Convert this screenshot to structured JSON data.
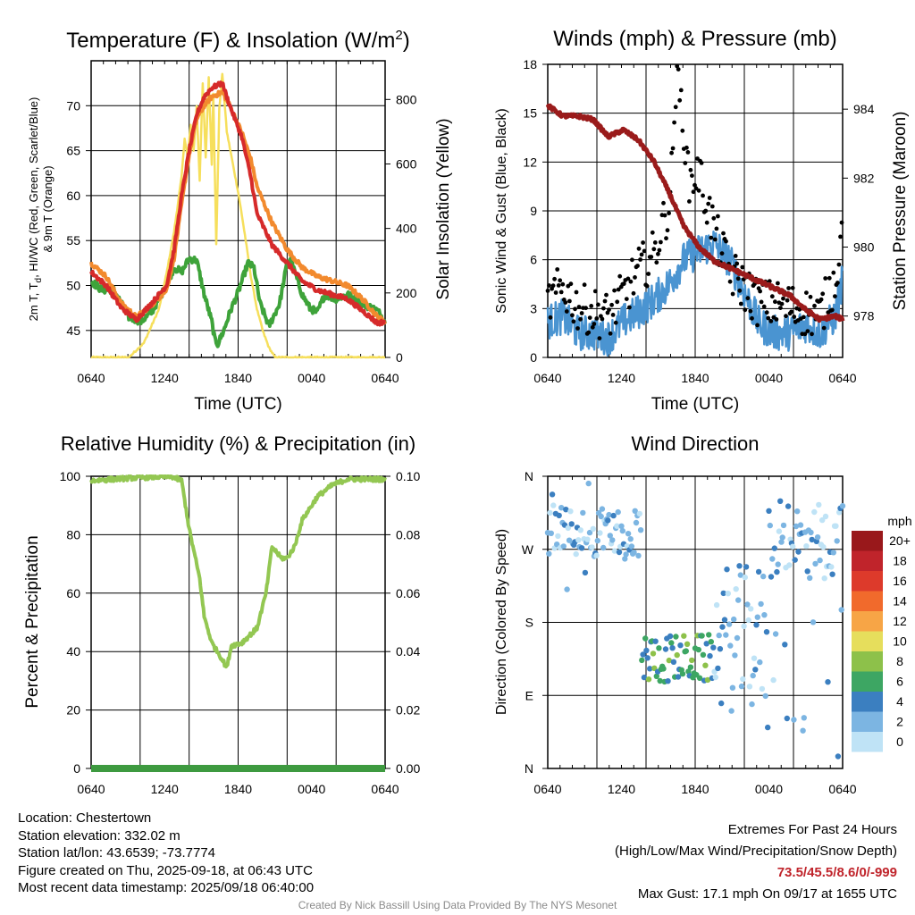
{
  "colors": {
    "temp_2m": "#d62a2a",
    "temp_9m": "#f28a2e",
    "dewpoint": "#3ea33a",
    "solar": "#f6df5c",
    "wind": "#4a94d1",
    "gust": "#000000",
    "pressure": "#9a1b1b",
    "rh": "#93c752",
    "precip": "#3e9a40"
  },
  "speed_legend": {
    "title": "mph",
    "levels": [
      {
        "label": "20+",
        "color": "#99181b"
      },
      {
        "label": "18",
        "color": "#c0242b"
      },
      {
        "label": "16",
        "color": "#dd3a2b"
      },
      {
        "label": "14",
        "color": "#f16a2c"
      },
      {
        "label": "12",
        "color": "#f7a546"
      },
      {
        "label": "10",
        "color": "#e6de5c"
      },
      {
        "label": "8",
        "color": "#8dc14a"
      },
      {
        "label": "6",
        "color": "#3da663"
      },
      {
        "label": "4",
        "color": "#3b7fc0"
      },
      {
        "label": "2",
        "color": "#7cb5e2"
      },
      {
        "label": "0",
        "color": "#bfe3f6"
      }
    ]
  },
  "chart_data": [
    {
      "type": "line",
      "title": "Temperature (F) & Insolation (W/m",
      "title_sup": "2",
      "title_close": ")",
      "xlabel": "Time (UTC)",
      "ylabel_left_line1": "2m T, T",
      "ylabel_left_sub": "d",
      "ylabel_left_rest": ", HI/WC (Red, Green, Scarlet/Blue)",
      "ylabel_left_line2": "& 9m T (Orange)",
      "ylabel_right": "Solar Insolation (Yellow)",
      "x_tick_labels": [
        "0640",
        "1240",
        "1840",
        "0040",
        "0640"
      ],
      "ylim": [
        42,
        75
      ],
      "y_ticks": [
        "45",
        "50",
        "55",
        "60",
        "65",
        "70"
      ],
      "y2lim": [
        0,
        920
      ],
      "y2_ticks": [
        "0",
        "200",
        "400",
        "600",
        "800"
      ],
      "series": [
        {
          "name": "2m T",
          "color_key": "temp_2m",
          "axis": "left",
          "points": [
            [
              0,
              51.5
            ],
            [
              1,
              50
            ],
            [
              2,
              47.5
            ],
            [
              3,
              46.2
            ],
            [
              4,
              48
            ],
            [
              5,
              50
            ],
            [
              5.5,
              54
            ],
            [
              6,
              60
            ],
            [
              6.5,
              65
            ],
            [
              7,
              69
            ],
            [
              7.5,
              71
            ],
            [
              8,
              72
            ],
            [
              8.7,
              72.5
            ],
            [
              9.2,
              70
            ],
            [
              10,
              66.5
            ],
            [
              10.6,
              62
            ],
            [
              11,
              58
            ],
            [
              12,
              54.5
            ],
            [
              13,
              52.5
            ],
            [
              14,
              50.5
            ],
            [
              15,
              49.5
            ],
            [
              16,
              49
            ],
            [
              17,
              48.5
            ],
            [
              18,
              47.2
            ],
            [
              19,
              45.8
            ],
            [
              19.5,
              46
            ]
          ]
        },
        {
          "name": "9m T",
          "color_key": "temp_9m",
          "axis": "left",
          "points": [
            [
              0,
              52.5
            ],
            [
              1,
              51
            ],
            [
              2,
              48
            ],
            [
              3,
              46.5
            ],
            [
              4,
              47.8
            ],
            [
              5,
              49.5
            ],
            [
              5.5,
              53
            ],
            [
              6,
              59
            ],
            [
              6.5,
              64.5
            ],
            [
              7,
              68.5
            ],
            [
              7.5,
              70
            ],
            [
              8,
              71
            ],
            [
              8.7,
              71.5
            ],
            [
              9.2,
              70
            ],
            [
              10,
              67
            ],
            [
              10.6,
              64
            ],
            [
              11,
              61
            ],
            [
              12,
              57
            ],
            [
              13,
              54
            ],
            [
              14,
              52
            ],
            [
              15,
              51
            ],
            [
              16,
              50.5
            ],
            [
              17,
              50
            ],
            [
              18,
              48.5
            ],
            [
              19,
              46.5
            ],
            [
              19.5,
              46
            ]
          ]
        },
        {
          "name": "Td",
          "color_key": "dewpoint",
          "axis": "left",
          "points": [
            [
              0,
              50.5
            ],
            [
              0.7,
              49.5
            ],
            [
              1.5,
              49.5
            ],
            [
              2.5,
              46.5
            ],
            [
              3.3,
              46
            ],
            [
              4,
              47
            ],
            [
              4.5,
              48.5
            ],
            [
              5,
              50
            ],
            [
              5.5,
              52
            ],
            [
              6,
              51.5
            ],
            [
              6.5,
              53
            ],
            [
              7,
              52.8
            ],
            [
              7.5,
              49
            ],
            [
              8,
              46
            ],
            [
              8.2,
              44
            ],
            [
              8.4,
              43.5
            ],
            [
              8.8,
              45
            ],
            [
              9.2,
              47
            ],
            [
              9.8,
              49.5
            ],
            [
              10.4,
              52.5
            ],
            [
              10.8,
              52
            ],
            [
              11.2,
              48
            ],
            [
              11.8,
              45.5
            ],
            [
              12.5,
              48
            ],
            [
              13,
              52.5
            ],
            [
              13.2,
              53
            ],
            [
              13.6,
              51
            ],
            [
              14,
              49
            ],
            [
              14.5,
              47.5
            ],
            [
              15,
              47
            ],
            [
              15.5,
              49
            ],
            [
              16.2,
              48.5
            ],
            [
              17,
              49
            ],
            [
              17.5,
              48.5
            ],
            [
              18,
              48
            ],
            [
              19,
              47.2
            ],
            [
              19.5,
              46
            ]
          ]
        },
        {
          "name": "Solar",
          "color_key": "solar",
          "axis": "right",
          "points": [
            [
              0,
              0
            ],
            [
              2.5,
              0
            ],
            [
              3.5,
              45
            ],
            [
              4.5,
              150
            ],
            [
              5,
              260
            ],
            [
              5.5,
              390
            ],
            [
              6,
              560
            ],
            [
              6.2,
              680
            ],
            [
              6.4,
              620
            ],
            [
              6.6,
              720
            ],
            [
              6.8,
              640
            ],
            [
              7,
              780
            ],
            [
              7.2,
              550
            ],
            [
              7.4,
              850
            ],
            [
              7.6,
              620
            ],
            [
              7.8,
              870
            ],
            [
              8,
              600
            ],
            [
              8.1,
              820
            ],
            [
              8.3,
              350
            ],
            [
              8.5,
              770
            ],
            [
              8.7,
              880
            ],
            [
              9,
              700
            ],
            [
              9.4,
              600
            ],
            [
              9.8,
              500
            ],
            [
              10.2,
              380
            ],
            [
              10.6,
              250
            ],
            [
              11,
              150
            ],
            [
              11.4,
              80
            ],
            [
              11.8,
              30
            ],
            [
              12.2,
              0
            ],
            [
              19.5,
              0
            ]
          ]
        }
      ]
    },
    {
      "type": "line",
      "title": "Winds (mph) & Pressure (mb)",
      "xlabel": "Time (UTC)",
      "ylabel_left": "Sonic Wind & Gust (Blue, Black)",
      "ylabel_right": "Station Pressure (Maroon)",
      "x_tick_labels": [
        "0640",
        "1240",
        "1840",
        "0040",
        "0640"
      ],
      "ylim": [
        0,
        18
      ],
      "y_ticks": [
        "0",
        "3",
        "6",
        "9",
        "12",
        "15",
        "18"
      ],
      "y2lim": [
        976.8,
        985.3
      ],
      "y2_ticks": [
        "978",
        "980",
        "982",
        "984"
      ],
      "series": [
        {
          "name": "Wind",
          "color_key": "wind",
          "axis": "left",
          "points": [
            [
              0,
              2.2
            ],
            [
              1,
              2.5
            ],
            [
              2,
              1.5
            ],
            [
              3,
              1.5
            ],
            [
              4,
              1.2
            ],
            [
              5,
              2.2
            ],
            [
              6,
              2.8
            ],
            [
              7,
              3.5
            ],
            [
              8,
              4.5
            ],
            [
              9,
              6
            ],
            [
              10,
              6.5
            ],
            [
              11,
              7
            ],
            [
              12,
              6
            ],
            [
              13,
              4
            ],
            [
              14,
              2
            ],
            [
              15,
              1.5
            ],
            [
              16,
              1.5
            ],
            [
              17,
              2
            ],
            [
              18,
              1.5
            ],
            [
              19,
              2.5
            ],
            [
              19.5,
              4.8
            ]
          ]
        },
        {
          "name": "Gust",
          "color_key": "gust",
          "axis": "left",
          "points": [
            [
              0,
              3
            ],
            [
              1,
              4
            ],
            [
              2,
              2.8
            ],
            [
              3,
              2.5
            ],
            [
              4,
              2.2
            ],
            [
              5,
              3.5
            ],
            [
              6,
              5
            ],
            [
              7,
              6
            ],
            [
              8,
              9
            ],
            [
              8.2,
              11
            ],
            [
              8.5,
              17.2
            ],
            [
              9,
              14
            ],
            [
              9.3,
              10.5
            ],
            [
              10,
              11
            ],
            [
              11,
              7.5
            ],
            [
              12,
              5
            ],
            [
              13,
              4
            ],
            [
              14,
              3
            ],
            [
              15,
              3
            ],
            [
              16,
              2.8
            ],
            [
              17,
              2.5
            ],
            [
              18,
              2.3
            ],
            [
              19,
              4.5
            ],
            [
              19.5,
              7.5
            ]
          ]
        },
        {
          "name": "Pressure",
          "color_key": "pressure",
          "axis": "right",
          "points": [
            [
              0,
              984.1
            ],
            [
              1,
              983.8
            ],
            [
              2,
              983.8
            ],
            [
              3,
              983.7
            ],
            [
              4,
              983.2
            ],
            [
              5,
              983.4
            ],
            [
              6,
              983.1
            ],
            [
              7,
              982.5
            ],
            [
              8,
              981.6
            ],
            [
              9,
              980.6
            ],
            [
              10,
              980.0
            ],
            [
              11,
              979.6
            ],
            [
              12,
              979.4
            ],
            [
              13,
              979.2
            ],
            [
              14,
              979.0
            ],
            [
              15,
              978.8
            ],
            [
              16,
              978.6
            ],
            [
              17,
              978.2
            ],
            [
              18,
              977.9
            ],
            [
              19,
              978.0
            ],
            [
              19.5,
              977.9
            ]
          ]
        }
      ]
    },
    {
      "type": "line",
      "title": "Relative Humidity (%) & Precipitation (in)",
      "xlabel": "",
      "ylabel_left": "Percent & Precipitation",
      "x_tick_labels": [
        "0640",
        "1240",
        "1840",
        "0040",
        "0640"
      ],
      "ylim": [
        0,
        100
      ],
      "y_ticks": [
        "0",
        "20",
        "40",
        "60",
        "80",
        "100"
      ],
      "y2lim": [
        0,
        0.1
      ],
      "y2_ticks": [
        "0.00",
        "0.02",
        "0.04",
        "0.06",
        "0.08",
        "0.10"
      ],
      "series": [
        {
          "name": "RH",
          "color_key": "rh",
          "axis": "left",
          "points": [
            [
              0,
              98.5
            ],
            [
              3,
              99.5
            ],
            [
              5.3,
              100
            ],
            [
              6,
              98.5
            ],
            [
              6.5,
              82
            ],
            [
              7.2,
              65
            ],
            [
              7.5,
              52
            ],
            [
              8,
              43
            ],
            [
              8.5,
              39
            ],
            [
              9,
              34.5
            ],
            [
              9.3,
              42
            ],
            [
              10,
              43
            ],
            [
              11,
              48
            ],
            [
              11.6,
              60
            ],
            [
              12,
              76
            ],
            [
              12.6,
              72
            ],
            [
              13,
              72
            ],
            [
              13.5,
              76
            ],
            [
              14,
              85
            ],
            [
              15,
              93
            ],
            [
              16,
              97
            ],
            [
              17,
              99
            ],
            [
              19.5,
              99
            ]
          ]
        },
        {
          "name": "Precip",
          "color_key": "precip",
          "axis": "right",
          "points": [
            [
              0,
              0
            ],
            [
              19.5,
              0
            ]
          ]
        }
      ]
    },
    {
      "type": "scatter",
      "title": "Wind Direction",
      "xlabel": "",
      "ylabel_left": "Direction (Colored By Speed)",
      "x_tick_labels": [
        "0640",
        "1240",
        "1840",
        "0040",
        "0640"
      ],
      "ylim": [
        0,
        360
      ],
      "y_ticks": [
        "N",
        "E",
        "S",
        "W",
        "N"
      ]
    }
  ],
  "info": {
    "location": "Location: Chestertown",
    "elevation": "Station elevation: 332.02 m",
    "latlon": "Station lat/lon: 43.6539; -73.7774",
    "created": "Figure created on Thu, 2025-09-18, at 06:43 UTC",
    "recent": "Most recent data timestamp: 2025/09/18 06:40:00"
  },
  "extremes": {
    "heading": "Extremes For Past 24 Hours",
    "subheading": "(High/Low/Max Wind/Precipitation/Snow Depth)",
    "values": "73.5/45.5/8.6/0/-999",
    "max_gust": "Max Gust: 17.1 mph On 09/17 at 1655 UTC"
  },
  "credit": "Created By Nick Bassill Using Data Provided By The NYS Mesonet"
}
